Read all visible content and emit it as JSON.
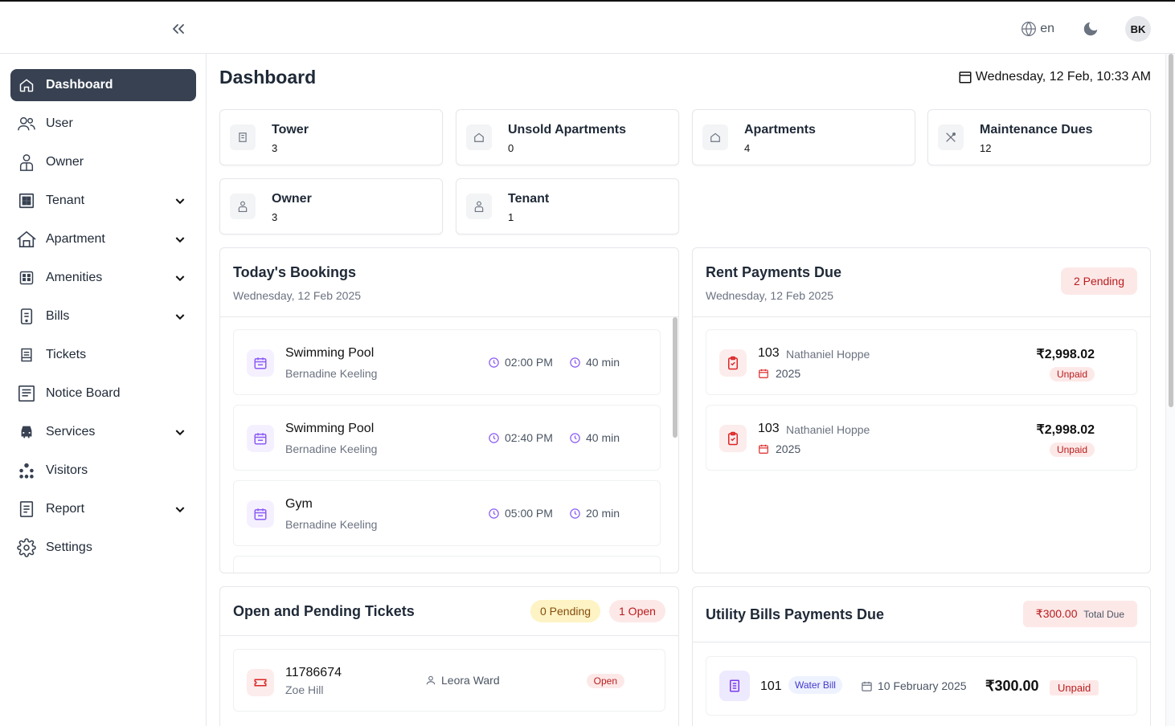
{
  "header": {
    "language": "en",
    "avatar_initials": "BK"
  },
  "sidebar": {
    "items": [
      {
        "label": "Dashboard",
        "icon": "home-icon",
        "active": true
      },
      {
        "label": "User",
        "icon": "users-icon"
      },
      {
        "label": "Owner",
        "icon": "owner-icon"
      },
      {
        "label": "Tenant",
        "icon": "grid-icon",
        "expandable": true
      },
      {
        "label": "Apartment",
        "icon": "building-icon",
        "expandable": true
      },
      {
        "label": "Amenities",
        "icon": "amenities-icon",
        "expandable": true
      },
      {
        "label": "Bills",
        "icon": "bill-icon",
        "expandable": true
      },
      {
        "label": "Tickets",
        "icon": "ticket-icon"
      },
      {
        "label": "Notice Board",
        "icon": "notice-icon"
      },
      {
        "label": "Services",
        "icon": "services-icon",
        "expandable": true
      },
      {
        "label": "Visitors",
        "icon": "visitors-icon"
      },
      {
        "label": "Report",
        "icon": "report-icon",
        "expandable": true
      },
      {
        "label": "Settings",
        "icon": "gear-icon"
      }
    ]
  },
  "main": {
    "title": "Dashboard",
    "datetime": "Wednesday, 12 Feb, 10:33 AM",
    "stats": [
      {
        "label": "Tower",
        "value": "3"
      },
      {
        "label": "Unsold Apartments",
        "value": "0"
      },
      {
        "label": "Apartments",
        "value": "4"
      },
      {
        "label": "Maintenance Dues",
        "value": "12"
      },
      {
        "label": "Owner",
        "value": "3"
      },
      {
        "label": "Tenant",
        "value": "1"
      }
    ],
    "bookings": {
      "title": "Today's Bookings",
      "date": "Wednesday, 12 Feb 2025",
      "items": [
        {
          "amenity": "Swimming Pool",
          "person": "Bernadine Keeling",
          "time": "02:00 PM",
          "duration": "40 min"
        },
        {
          "amenity": "Swimming Pool",
          "person": "Bernadine Keeling",
          "time": "02:40 PM",
          "duration": "40 min"
        },
        {
          "amenity": "Gym",
          "person": "Bernadine Keeling",
          "time": "05:00 PM",
          "duration": "20 min"
        }
      ]
    },
    "rent": {
      "title": "Rent Payments Due",
      "date": "Wednesday, 12 Feb 2025",
      "badge": "2 Pending",
      "items": [
        {
          "unit": "103",
          "name": "Nathaniel Hoppe",
          "year": "2025",
          "amount": "₹2,998.02",
          "status": "Unpaid"
        },
        {
          "unit": "103",
          "name": "Nathaniel Hoppe",
          "year": "2025",
          "amount": "₹2,998.02",
          "status": "Unpaid"
        }
      ]
    },
    "tickets": {
      "title": "Open and Pending Tickets",
      "pending_badge": "0 Pending",
      "open_badge": "1 Open",
      "items": [
        {
          "id": "11786674",
          "raised_by": "Zoe Hill",
          "assignee": "Leora Ward",
          "status": "Open"
        }
      ]
    },
    "utility": {
      "title": "Utility Bills Payments Due",
      "total_amount": "₹300.00",
      "total_label": "Total Due",
      "items": [
        {
          "unit": "101",
          "type": "Water Bill",
          "date": "10 February 2025",
          "amount": "₹300.00",
          "status": "Unpaid"
        }
      ]
    }
  }
}
